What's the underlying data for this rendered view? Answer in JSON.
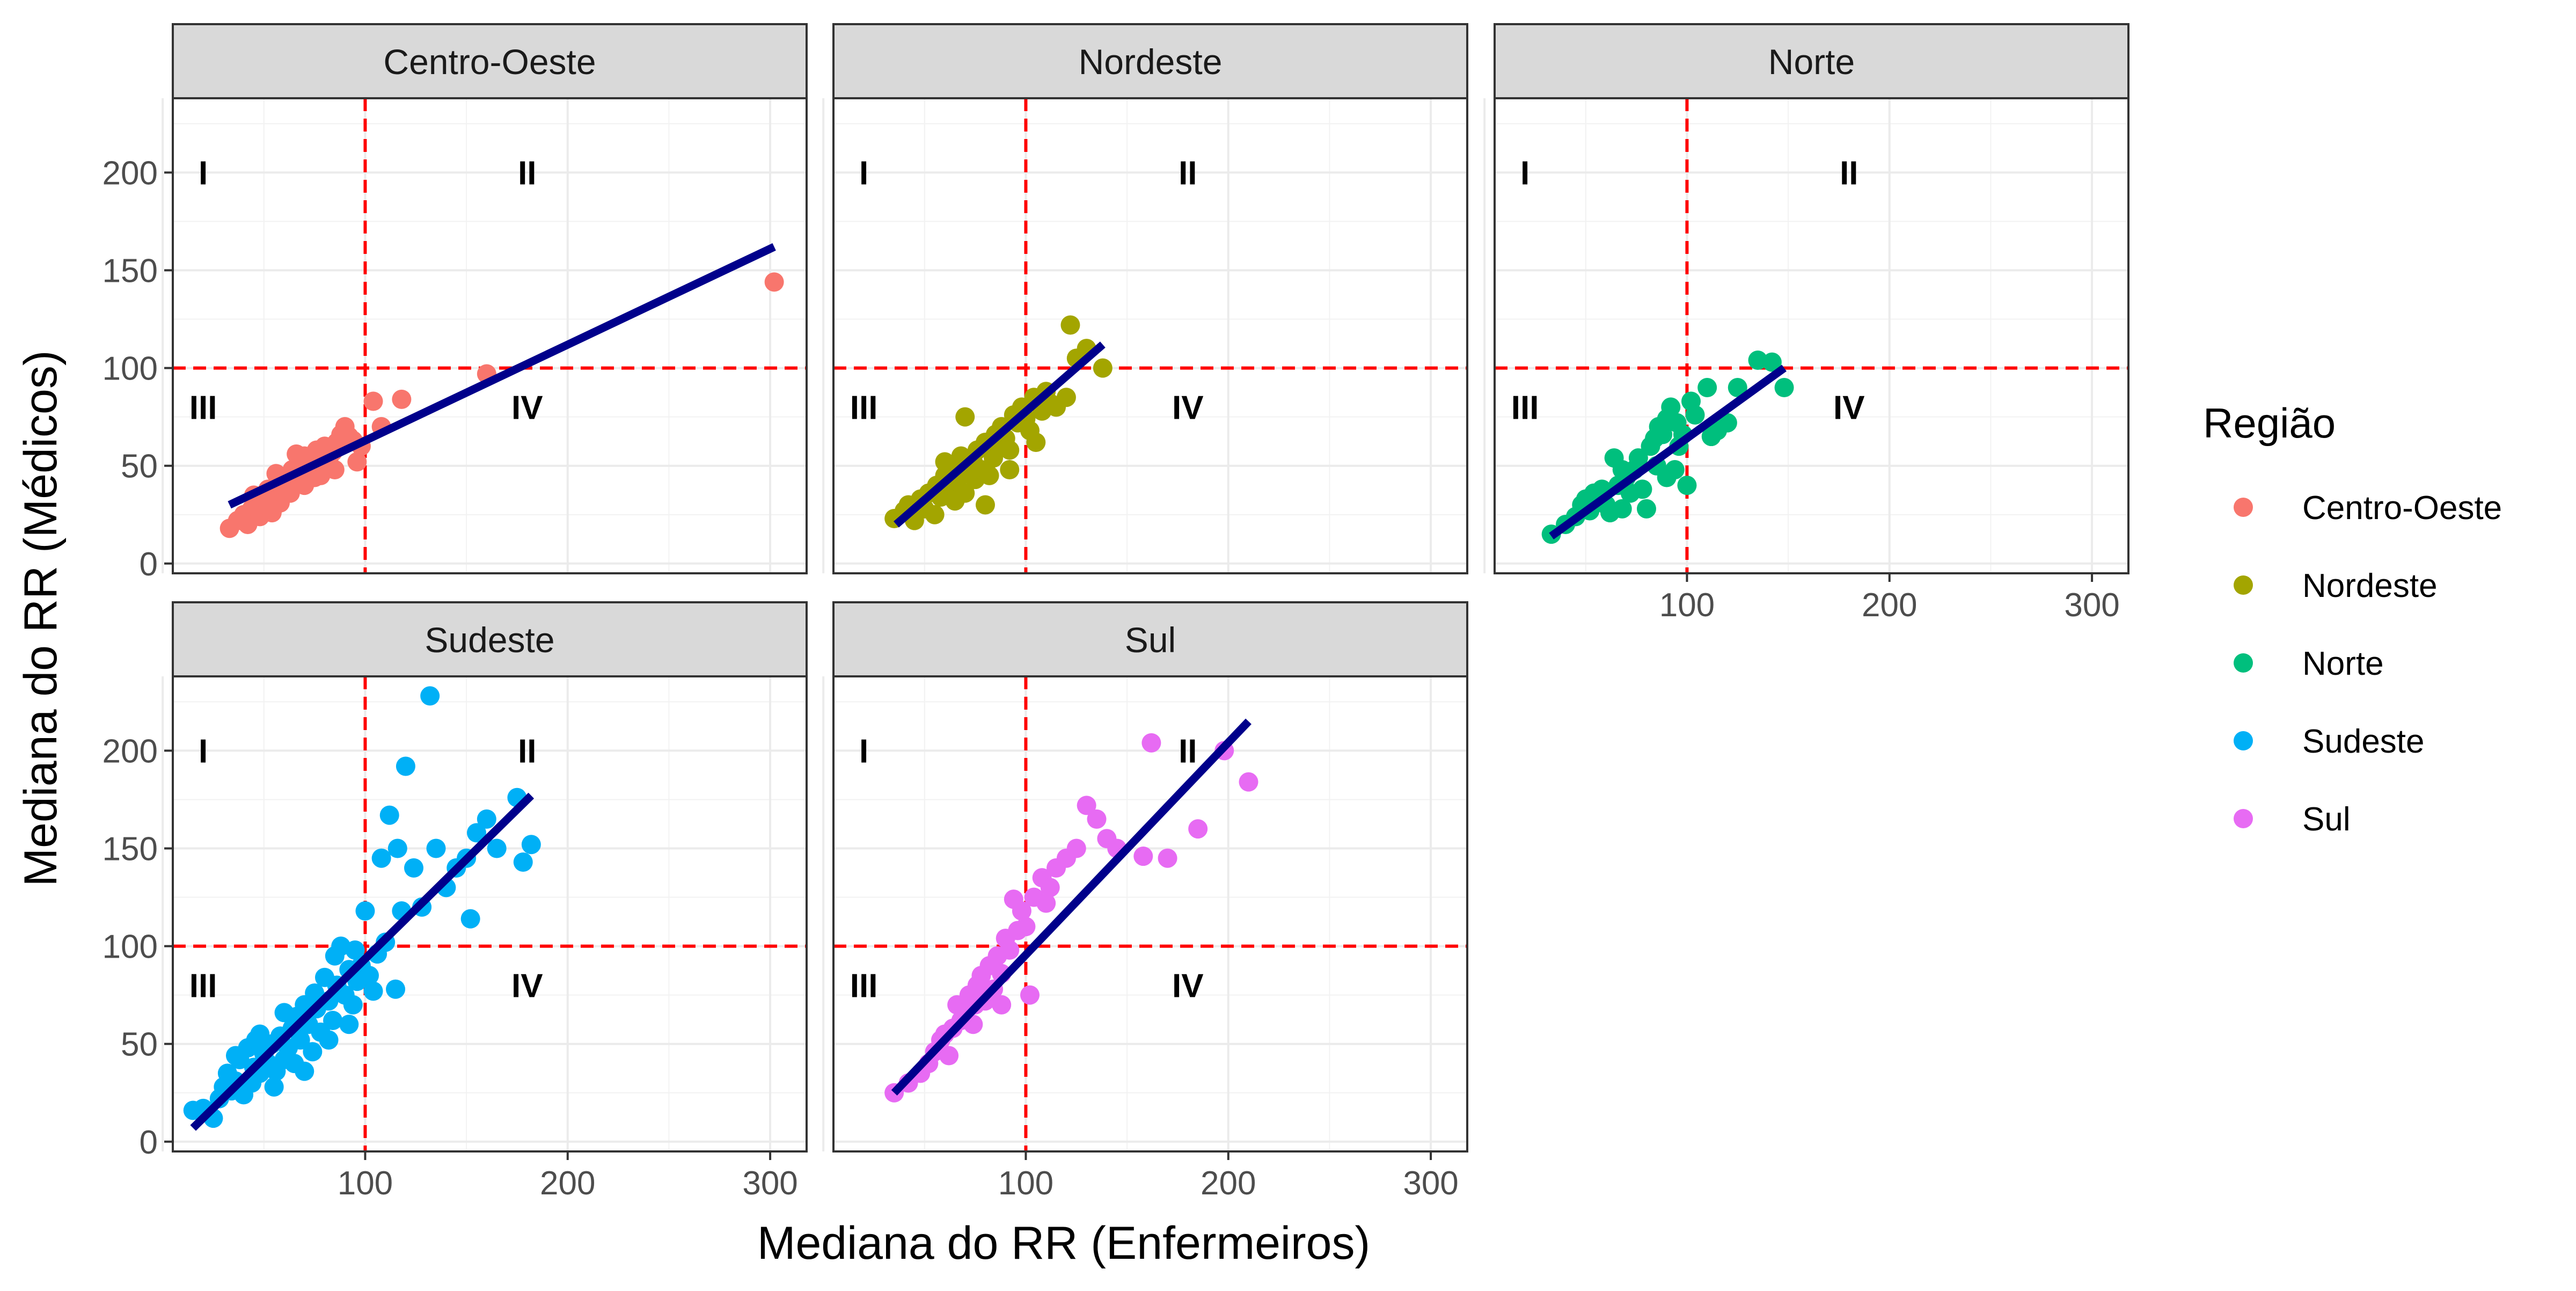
{
  "chart_data": {
    "type": "scatter",
    "facet_variable": "Região",
    "xlabel": "Mediana do RR (Enfermeiros)",
    "ylabel": "Mediana do RR (Médicos)",
    "x_ticks": [
      100,
      200,
      300
    ],
    "y_ticks": [
      0,
      50,
      100,
      150,
      200
    ],
    "xlim": [
      5,
      318
    ],
    "ylim": [
      -5,
      238
    ],
    "grid": true,
    "reference_lines": {
      "x": 100,
      "y": 100,
      "color": "#FF0000",
      "style": "dashed"
    },
    "quadrant_labels": [
      {
        "text": "I",
        "x": 20,
        "y": 200
      },
      {
        "text": "II",
        "x": 180,
        "y": 200
      },
      {
        "text": "III",
        "x": 20,
        "y": 80
      },
      {
        "text": "IV",
        "x": 180,
        "y": 80
      }
    ],
    "trend_line_color": "#00008B",
    "legend": {
      "title": "Região",
      "position": "right"
    },
    "panels": [
      {
        "name": "Centro-Oeste",
        "color": "#F8766D",
        "trend": [
          [
            33,
            30
          ],
          [
            302,
            162
          ]
        ],
        "points": [
          [
            33,
            18
          ],
          [
            37,
            22
          ],
          [
            40,
            25
          ],
          [
            42,
            20
          ],
          [
            44,
            28
          ],
          [
            46,
            30
          ],
          [
            48,
            24
          ],
          [
            50,
            33
          ],
          [
            52,
            38
          ],
          [
            54,
            26
          ],
          [
            55,
            29
          ],
          [
            57,
            35
          ],
          [
            58,
            31
          ],
          [
            60,
            40
          ],
          [
            62,
            44
          ],
          [
            63,
            36
          ],
          [
            64,
            48
          ],
          [
            66,
            42
          ],
          [
            68,
            50
          ],
          [
            70,
            55
          ],
          [
            72,
            47
          ],
          [
            74,
            52
          ],
          [
            76,
            58
          ],
          [
            78,
            45
          ],
          [
            80,
            60
          ],
          [
            82,
            53
          ],
          [
            84,
            57
          ],
          [
            86,
            62
          ],
          [
            88,
            66
          ],
          [
            90,
            70
          ],
          [
            92,
            65
          ],
          [
            94,
            63
          ],
          [
            96,
            52
          ],
          [
            98,
            60
          ],
          [
            104,
            83
          ],
          [
            108,
            70
          ],
          [
            118,
            84
          ],
          [
            160,
            97
          ],
          [
            302,
            144
          ],
          [
            62,
            37
          ],
          [
            56,
            46
          ],
          [
            66,
            56
          ],
          [
            75,
            44
          ],
          [
            85,
            48
          ],
          [
            45,
            35
          ],
          [
            52,
            30
          ],
          [
            70,
            40
          ]
        ]
      },
      {
        "name": "Nordeste",
        "color": "#A3A500",
        "trend": [
          [
            36,
            20
          ],
          [
            138,
            112
          ]
        ],
        "points": [
          [
            35,
            23
          ],
          [
            40,
            27
          ],
          [
            42,
            30
          ],
          [
            45,
            22
          ],
          [
            48,
            33
          ],
          [
            50,
            28
          ],
          [
            52,
            36
          ],
          [
            55,
            25
          ],
          [
            56,
            40
          ],
          [
            58,
            34
          ],
          [
            60,
            45
          ],
          [
            62,
            38
          ],
          [
            64,
            50
          ],
          [
            65,
            32
          ],
          [
            66,
            42
          ],
          [
            68,
            55
          ],
          [
            70,
            36
          ],
          [
            72,
            47
          ],
          [
            74,
            52
          ],
          [
            75,
            43
          ],
          [
            76,
            58
          ],
          [
            78,
            48
          ],
          [
            80,
            62
          ],
          [
            82,
            45
          ],
          [
            84,
            54
          ],
          [
            85,
            66
          ],
          [
            86,
            60
          ],
          [
            88,
            70
          ],
          [
            90,
            64
          ],
          [
            92,
            58
          ],
          [
            94,
            76
          ],
          [
            96,
            72
          ],
          [
            98,
            80
          ],
          [
            100,
            74
          ],
          [
            102,
            68
          ],
          [
            104,
            85
          ],
          [
            105,
            62
          ],
          [
            108,
            78
          ],
          [
            110,
            88
          ],
          [
            112,
            82
          ],
          [
            115,
            80
          ],
          [
            120,
            85
          ],
          [
            122,
            122
          ],
          [
            125,
            105
          ],
          [
            130,
            110
          ],
          [
            138,
            100
          ],
          [
            70,
            75
          ],
          [
            60,
            52
          ],
          [
            80,
            30
          ],
          [
            92,
            48
          ]
        ]
      },
      {
        "name": "Norte",
        "color": "#00BF7D",
        "trend": [
          [
            33,
            14
          ],
          [
            148,
            100
          ]
        ],
        "points": [
          [
            33,
            15
          ],
          [
            40,
            20
          ],
          [
            45,
            24
          ],
          [
            48,
            30
          ],
          [
            50,
            33
          ],
          [
            52,
            27
          ],
          [
            54,
            36
          ],
          [
            56,
            32
          ],
          [
            58,
            38
          ],
          [
            60,
            30
          ],
          [
            62,
            26
          ],
          [
            64,
            54
          ],
          [
            66,
            40
          ],
          [
            68,
            28
          ],
          [
            70,
            44
          ],
          [
            72,
            36
          ],
          [
            74,
            48
          ],
          [
            76,
            54
          ],
          [
            78,
            38
          ],
          [
            80,
            28
          ],
          [
            82,
            60
          ],
          [
            84,
            64
          ],
          [
            85,
            50
          ],
          [
            86,
            70
          ],
          [
            88,
            66
          ],
          [
            90,
            74
          ],
          [
            92,
            80
          ],
          [
            94,
            48
          ],
          [
            95,
            72
          ],
          [
            96,
            60
          ],
          [
            98,
            66
          ],
          [
            100,
            40
          ],
          [
            102,
            83
          ],
          [
            104,
            76
          ],
          [
            110,
            90
          ],
          [
            112,
            65
          ],
          [
            115,
            68
          ],
          [
            120,
            72
          ],
          [
            125,
            90
          ],
          [
            135,
            104
          ],
          [
            142,
            103
          ],
          [
            148,
            90
          ],
          [
            90,
            44
          ],
          [
            68,
            48
          ]
        ]
      },
      {
        "name": "Sudeste",
        "color": "#00B0F6",
        "trend": [
          [
            15,
            7
          ],
          [
            182,
            177
          ]
        ],
        "points": [
          [
            15,
            16
          ],
          [
            20,
            17
          ],
          [
            25,
            12
          ],
          [
            28,
            22
          ],
          [
            30,
            28
          ],
          [
            32,
            35
          ],
          [
            34,
            26
          ],
          [
            36,
            31
          ],
          [
            38,
            42
          ],
          [
            40,
            24
          ],
          [
            42,
            48
          ],
          [
            44,
            30
          ],
          [
            45,
            38
          ],
          [
            46,
            52
          ],
          [
            48,
            35
          ],
          [
            50,
            45
          ],
          [
            52,
            40
          ],
          [
            54,
            50
          ],
          [
            55,
            28
          ],
          [
            56,
            36
          ],
          [
            58,
            54
          ],
          [
            60,
            42
          ],
          [
            62,
            48
          ],
          [
            64,
            58
          ],
          [
            65,
            40
          ],
          [
            66,
            64
          ],
          [
            68,
            52
          ],
          [
            70,
            70
          ],
          [
            72,
            60
          ],
          [
            74,
            46
          ],
          [
            75,
            76
          ],
          [
            76,
            68
          ],
          [
            78,
            56
          ],
          [
            80,
            84
          ],
          [
            82,
            72
          ],
          [
            84,
            62
          ],
          [
            85,
            95
          ],
          [
            86,
            80
          ],
          [
            88,
            100
          ],
          [
            90,
            75
          ],
          [
            92,
            88
          ],
          [
            94,
            70
          ],
          [
            95,
            98
          ],
          [
            96,
            82
          ],
          [
            98,
            90
          ],
          [
            100,
            118
          ],
          [
            102,
            85
          ],
          [
            104,
            77
          ],
          [
            106,
            96
          ],
          [
            108,
            145
          ],
          [
            110,
            102
          ],
          [
            112,
            167
          ],
          [
            115,
            78
          ],
          [
            116,
            150
          ],
          [
            118,
            118
          ],
          [
            120,
            192
          ],
          [
            124,
            140
          ],
          [
            128,
            120
          ],
          [
            132,
            228
          ],
          [
            135,
            150
          ],
          [
            140,
            130
          ],
          [
            145,
            140
          ],
          [
            150,
            145
          ],
          [
            152,
            114
          ],
          [
            155,
            158
          ],
          [
            160,
            165
          ],
          [
            165,
            150
          ],
          [
            175,
            176
          ],
          [
            178,
            143
          ],
          [
            182,
            152
          ],
          [
            70,
            36
          ],
          [
            60,
            66
          ],
          [
            82,
            52
          ],
          [
            92,
            60
          ],
          [
            48,
            55
          ],
          [
            36,
            44
          ]
        ]
      },
      {
        "name": "Sul",
        "color": "#E76BF3",
        "trend": [
          [
            35,
            25
          ],
          [
            210,
            215
          ]
        ],
        "points": [
          [
            35,
            25
          ],
          [
            42,
            30
          ],
          [
            48,
            35
          ],
          [
            52,
            40
          ],
          [
            55,
            46
          ],
          [
            58,
            52
          ],
          [
            60,
            55
          ],
          [
            62,
            44
          ],
          [
            64,
            58
          ],
          [
            66,
            70
          ],
          [
            68,
            62
          ],
          [
            70,
            66
          ],
          [
            72,
            75
          ],
          [
            74,
            60
          ],
          [
            76,
            80
          ],
          [
            78,
            85
          ],
          [
            80,
            72
          ],
          [
            82,
            90
          ],
          [
            84,
            78
          ],
          [
            86,
            95
          ],
          [
            88,
            86
          ],
          [
            90,
            104
          ],
          [
            92,
            98
          ],
          [
            94,
            124
          ],
          [
            96,
            108
          ],
          [
            98,
            118
          ],
          [
            100,
            110
          ],
          [
            102,
            75
          ],
          [
            104,
            125
          ],
          [
            108,
            135
          ],
          [
            110,
            122
          ],
          [
            112,
            130
          ],
          [
            115,
            140
          ],
          [
            120,
            145
          ],
          [
            125,
            150
          ],
          [
            130,
            172
          ],
          [
            135,
            165
          ],
          [
            140,
            155
          ],
          [
            145,
            150
          ],
          [
            158,
            146
          ],
          [
            162,
            204
          ],
          [
            170,
            145
          ],
          [
            185,
            160
          ],
          [
            198,
            200
          ],
          [
            210,
            184
          ],
          [
            88,
            70
          ],
          [
            75,
            70
          ]
        ]
      }
    ]
  }
}
